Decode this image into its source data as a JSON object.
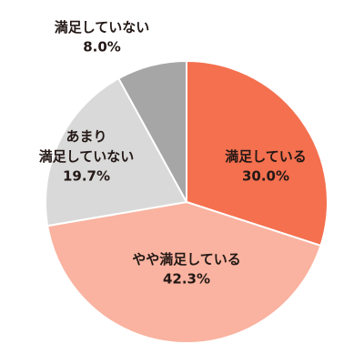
{
  "chart_data": {
    "type": "pie",
    "categories": [
      "満足している",
      "やや満足している",
      "あまり\n満足していない",
      "満足していない"
    ],
    "values": [
      30.0,
      42.3,
      19.7,
      8.0
    ],
    "value_labels": [
      "30.0%",
      "42.3%",
      "19.7%",
      "8.0%"
    ],
    "colors": [
      "#f4704f",
      "#f9b3a0",
      "#d9d9d9",
      "#a6a6a6"
    ]
  }
}
